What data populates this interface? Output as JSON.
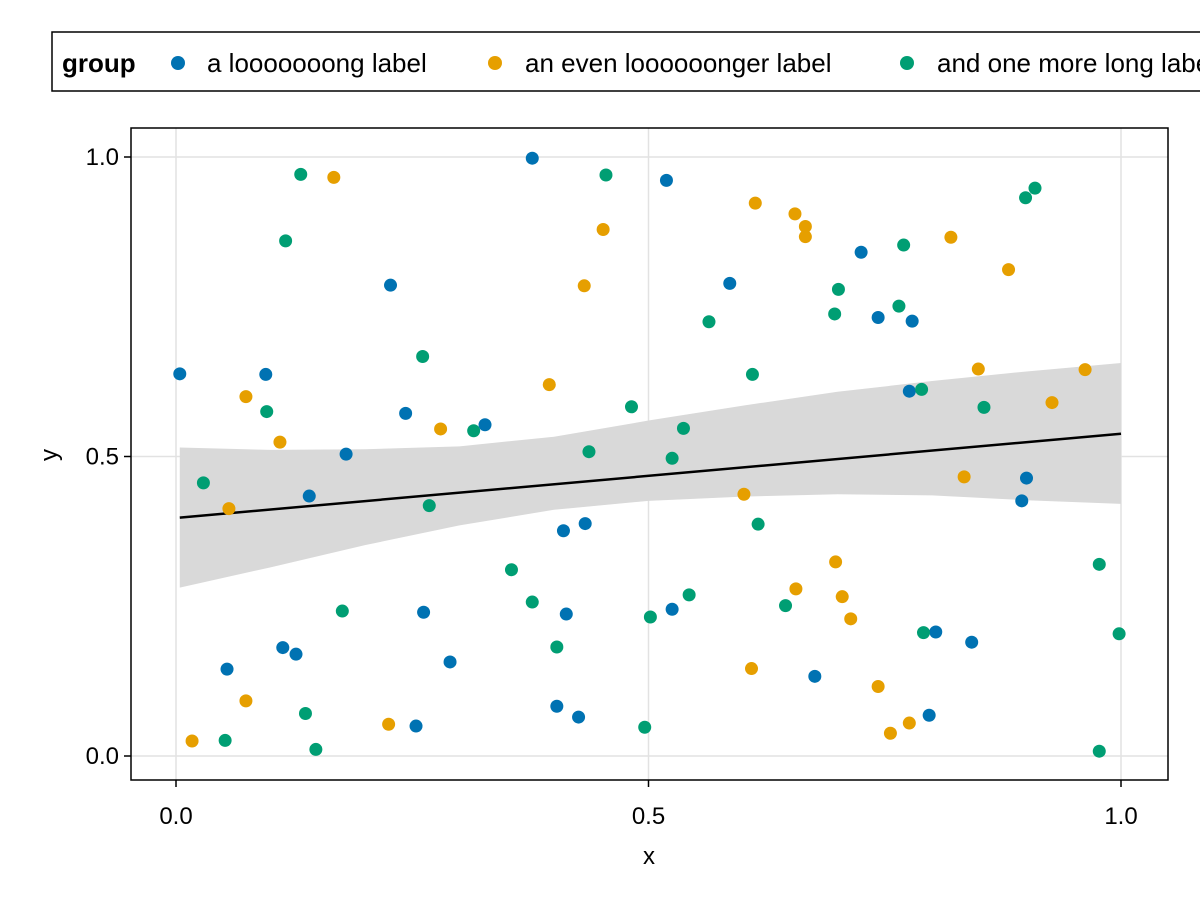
{
  "chart_data": {
    "type": "scatter",
    "title": "",
    "xlabel": "x",
    "ylabel": "y",
    "xlim": [
      -0.1,
      1.1
    ],
    "ylim": [
      -0.04,
      1.05
    ],
    "x_ticks": [
      "0.0",
      "0.5",
      "1.0"
    ],
    "x_tick_values": [
      0.0,
      0.5,
      1.0
    ],
    "y_ticks": [
      "0.0",
      "0.5",
      "1.0"
    ],
    "y_tick_values": [
      0.0,
      0.5,
      1.0
    ],
    "grid": true,
    "legend": {
      "title": "group",
      "placement": "top",
      "entries": [
        "a looooooong label",
        "an even loooooonger label",
        "and one more long label"
      ]
    },
    "series": [
      {
        "name": "a looooooong label",
        "color": "#0072B2",
        "points": [
          [
            0.004,
            0.638
          ],
          [
            0.054,
            0.145
          ],
          [
            0.095,
            0.637
          ],
          [
            0.113,
            0.181
          ],
          [
            0.127,
            0.17
          ],
          [
            0.141,
            0.434
          ],
          [
            0.18,
            0.504
          ],
          [
            0.227,
            0.786
          ],
          [
            0.243,
            0.572
          ],
          [
            0.254,
            0.05
          ],
          [
            0.262,
            0.24
          ],
          [
            0.29,
            0.157
          ],
          [
            0.327,
            0.553
          ],
          [
            0.377,
            0.998
          ],
          [
            0.403,
            0.083
          ],
          [
            0.41,
            0.376
          ],
          [
            0.413,
            0.237
          ],
          [
            0.426,
            0.065
          ],
          [
            0.433,
            0.388
          ],
          [
            0.519,
            0.961
          ],
          [
            0.525,
            0.245
          ],
          [
            0.586,
            0.789
          ],
          [
            0.676,
            0.133
          ],
          [
            0.725,
            0.841
          ],
          [
            0.743,
            0.732
          ],
          [
            0.776,
            0.609
          ],
          [
            0.779,
            0.726
          ],
          [
            0.797,
            0.068
          ],
          [
            0.804,
            0.207
          ],
          [
            0.842,
            0.19
          ],
          [
            0.895,
            0.426
          ],
          [
            0.9,
            0.464
          ]
        ]
      },
      {
        "name": "an even loooooonger label",
        "color": "#E69F00",
        "points": [
          [
            0.017,
            0.025
          ],
          [
            0.056,
            0.413
          ],
          [
            0.074,
            0.6
          ],
          [
            0.074,
            0.092
          ],
          [
            0.11,
            0.524
          ],
          [
            0.167,
            0.966
          ],
          [
            0.225,
            0.053
          ],
          [
            0.28,
            0.546
          ],
          [
            0.395,
            0.62
          ],
          [
            0.432,
            0.785
          ],
          [
            0.452,
            0.879
          ],
          [
            0.601,
            0.437
          ],
          [
            0.609,
            0.146
          ],
          [
            0.613,
            0.923
          ],
          [
            0.655,
            0.905
          ],
          [
            0.656,
            0.279
          ],
          [
            0.666,
            0.884
          ],
          [
            0.666,
            0.867
          ],
          [
            0.698,
            0.324
          ],
          [
            0.705,
            0.266
          ],
          [
            0.714,
            0.229
          ],
          [
            0.743,
            0.116
          ],
          [
            0.756,
            0.038
          ],
          [
            0.776,
            0.055
          ],
          [
            0.82,
            0.866
          ],
          [
            0.834,
            0.466
          ],
          [
            0.849,
            0.646
          ],
          [
            0.881,
            0.812
          ],
          [
            0.927,
            0.59
          ],
          [
            0.962,
            0.645
          ]
        ]
      },
      {
        "name": "and one more long label",
        "color": "#009E73",
        "points": [
          [
            0.029,
            0.456
          ],
          [
            0.052,
            0.026
          ],
          [
            0.096,
            0.575
          ],
          [
            0.116,
            0.86
          ],
          [
            0.132,
            0.971
          ],
          [
            0.137,
            0.071
          ],
          [
            0.148,
            0.011
          ],
          [
            0.176,
            0.242
          ],
          [
            0.261,
            0.667
          ],
          [
            0.268,
            0.418
          ],
          [
            0.315,
            0.543
          ],
          [
            0.355,
            0.311
          ],
          [
            0.377,
            0.257
          ],
          [
            0.403,
            0.182
          ],
          [
            0.437,
            0.508
          ],
          [
            0.455,
            0.97
          ],
          [
            0.482,
            0.583
          ],
          [
            0.496,
            0.048
          ],
          [
            0.502,
            0.232
          ],
          [
            0.525,
            0.497
          ],
          [
            0.537,
            0.547
          ],
          [
            0.543,
            0.269
          ],
          [
            0.564,
            0.725
          ],
          [
            0.61,
            0.637
          ],
          [
            0.616,
            0.387
          ],
          [
            0.645,
            0.251
          ],
          [
            0.697,
            0.738
          ],
          [
            0.701,
            0.779
          ],
          [
            0.765,
            0.751
          ],
          [
            0.77,
            0.853
          ],
          [
            0.789,
            0.612
          ],
          [
            0.791,
            0.206
          ],
          [
            0.855,
            0.582
          ],
          [
            0.899,
            0.932
          ],
          [
            0.909,
            0.948
          ],
          [
            0.977,
            0.008
          ],
          [
            0.977,
            0.32
          ],
          [
            0.998,
            0.204
          ]
        ]
      }
    ],
    "regression": {
      "type": "linear",
      "color": "#000000",
      "band_color": "#d9d9d9",
      "line": [
        [
          0.004,
          0.398
        ],
        [
          1.0,
          0.538
        ]
      ],
      "band": [
        [
          0.004,
          0.281,
          0.515
        ],
        [
          0.1,
          0.315,
          0.511
        ],
        [
          0.2,
          0.352,
          0.512
        ],
        [
          0.3,
          0.385,
          0.517
        ],
        [
          0.4,
          0.411,
          0.533
        ],
        [
          0.5,
          0.426,
          0.56
        ],
        [
          0.6,
          0.433,
          0.585
        ],
        [
          0.7,
          0.437,
          0.608
        ],
        [
          0.8,
          0.435,
          0.626
        ],
        [
          0.9,
          0.427,
          0.642
        ],
        [
          1.0,
          0.421,
          0.656
        ]
      ]
    }
  }
}
